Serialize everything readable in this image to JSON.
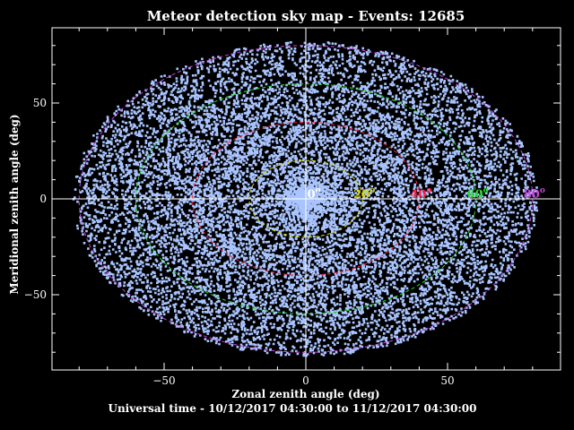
{
  "chart_data": {
    "type": "scatter",
    "title": "Meteor detection sky map - Events: 12685",
    "xlabel": "Zonal zenith angle (deg)",
    "ylabel": "Meridional zenith angle (deg)",
    "subtitle": "Universal time - 10/12/2017 04:30:00 to 11/12/2017 04:30:00",
    "event_count": 12685,
    "xlim": [
      -90,
      90
    ],
    "ylim": [
      -90,
      90
    ],
    "xticks": [
      -50,
      0,
      50
    ],
    "yticks": [
      -50,
      0,
      50
    ],
    "x_tick_labels": [
      "−50",
      "0",
      "50"
    ],
    "y_tick_labels": [
      "−50",
      "0",
      "50"
    ],
    "point_color": "#a9c4ff",
    "approx_max_zenith_deg": 82,
    "rings": [
      {
        "zenith_deg": 0,
        "label": "0",
        "color": "#ffffff",
        "dashed": false
      },
      {
        "zenith_deg": 20,
        "label": "20",
        "color": "#d8d800",
        "dashed": true
      },
      {
        "zenith_deg": 40,
        "label": "40",
        "color": "#ff2040",
        "dashed": true
      },
      {
        "zenith_deg": 60,
        "label": "60",
        "color": "#20dd20",
        "dashed": true
      },
      {
        "zenith_deg": 80,
        "label": "80",
        "color": "#cc44dd",
        "dashed": true
      }
    ],
    "degree_symbol": "o"
  }
}
